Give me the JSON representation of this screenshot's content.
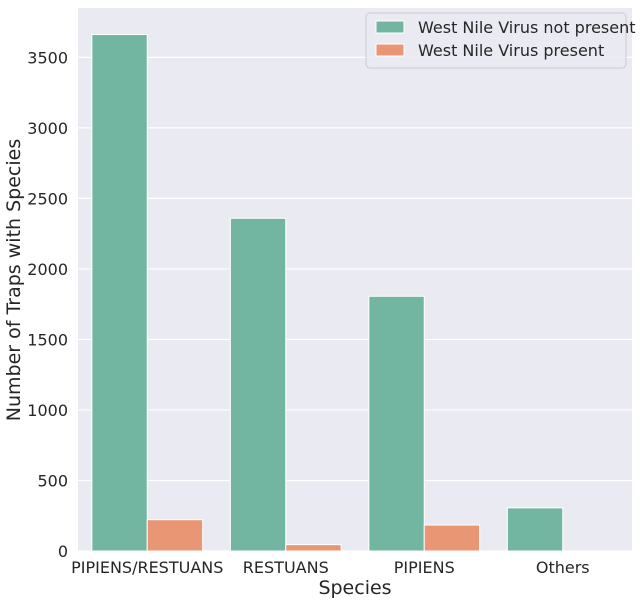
{
  "chart_data": {
    "type": "bar",
    "title": "",
    "xlabel": "Species",
    "ylabel": "Number of Traps with Species",
    "categories": [
      "PIPIENS/RESTUANS",
      "RESTUANS",
      "PIPIENS",
      "Others"
    ],
    "series": [
      {
        "name": "West Nile Virus not present",
        "color": "#72b6a1",
        "values": [
          3662,
          2359,
          1806,
          306
        ]
      },
      {
        "name": "West Nile Virus present",
        "color": "#e99675",
        "values": [
          222,
          45,
          184,
          0
        ]
      }
    ],
    "ylim": [
      0,
      3850
    ],
    "yticks": [
      0,
      500,
      1000,
      1500,
      2000,
      2500,
      3000,
      3500
    ],
    "grid": true,
    "legend_position": "top-right",
    "background": "#eaeaf2"
  }
}
